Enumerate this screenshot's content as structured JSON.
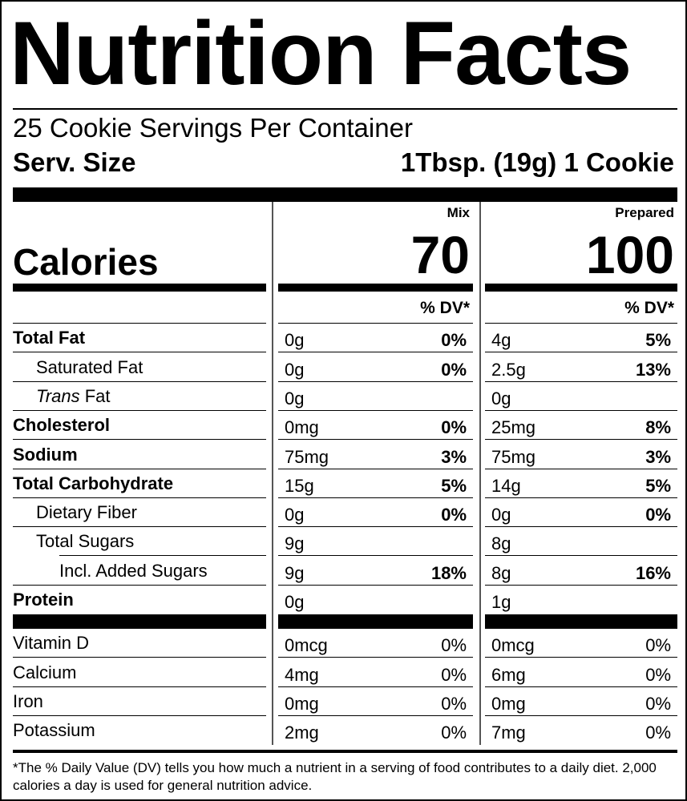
{
  "header": {
    "title": "Nutrition Facts",
    "servings": "25 Cookie Servings Per Container",
    "serving_size_label": "Serv. Size",
    "serving_size": "1Tbsp. (19g) 1 Cookie"
  },
  "calories": {
    "label": "Calories",
    "columns": [
      {
        "heading": "Mix",
        "value": "70",
        "dv_heading": "% DV*"
      },
      {
        "heading": "Prepared",
        "value": "100",
        "dv_heading": "% DV*"
      }
    ]
  },
  "nutrients": [
    {
      "name": "Total Fat",
      "bold": true,
      "indent": 0,
      "mix": {
        "amount": "0g",
        "dv": "0%"
      },
      "prepared": {
        "amount": "4g",
        "dv": "5%"
      }
    },
    {
      "name": "Saturated Fat",
      "bold": false,
      "indent": 1,
      "mix": {
        "amount": "0g",
        "dv": "0%"
      },
      "prepared": {
        "amount": "2.5g",
        "dv": "13%"
      }
    },
    {
      "italic_prefix": "Trans",
      "name": "Fat",
      "bold": false,
      "indent": 1,
      "mix": {
        "amount": "0g"
      },
      "prepared": {
        "amount": "0g"
      }
    },
    {
      "name": "Cholesterol",
      "bold": true,
      "indent": 0,
      "mix": {
        "amount": "0mg",
        "dv": "0%"
      },
      "prepared": {
        "amount": "25mg",
        "dv": "8%"
      }
    },
    {
      "name": "Sodium",
      "bold": true,
      "indent": 0,
      "mix": {
        "amount": "75mg",
        "dv": "3%"
      },
      "prepared": {
        "amount": "75mg",
        "dv": "3%"
      }
    },
    {
      "name": "Total Carbohydrate",
      "bold": true,
      "indent": 0,
      "mix": {
        "amount": "15g",
        "dv": "5%"
      },
      "prepared": {
        "amount": "14g",
        "dv": "5%"
      }
    },
    {
      "name": "Dietary Fiber",
      "bold": false,
      "indent": 1,
      "mix": {
        "amount": "0g",
        "dv": "0%"
      },
      "prepared": {
        "amount": "0g",
        "dv": "0%"
      }
    },
    {
      "name": "Total Sugars",
      "bold": false,
      "indent": 1,
      "mix": {
        "amount": "9g"
      },
      "prepared": {
        "amount": "8g"
      }
    },
    {
      "name": "Incl. Added Sugars",
      "bold": false,
      "indent": 2,
      "mix": {
        "amount": "9g",
        "dv": "18%"
      },
      "prepared": {
        "amount": "8g",
        "dv": "16%"
      }
    },
    {
      "name": "Protein",
      "bold": true,
      "indent": 0,
      "mix": {
        "amount": "0g"
      },
      "prepared": {
        "amount": "1g"
      }
    }
  ],
  "vitamins": [
    {
      "name": "Vitamin D",
      "mix": {
        "amount": "0mcg",
        "dv": "0%"
      },
      "prepared": {
        "amount": "0mcg",
        "dv": "0%"
      }
    },
    {
      "name": "Calcium",
      "mix": {
        "amount": "4mg",
        "dv": "0%"
      },
      "prepared": {
        "amount": "6mg",
        "dv": "0%"
      }
    },
    {
      "name": "Iron",
      "mix": {
        "amount": "0mg",
        "dv": "0%"
      },
      "prepared": {
        "amount": "0mg",
        "dv": "0%"
      }
    },
    {
      "name": "Potassium",
      "mix": {
        "amount": "2mg",
        "dv": "0%"
      },
      "prepared": {
        "amount": "7mg",
        "dv": "0%"
      }
    }
  ],
  "footnote": "*The % Daily Value (DV) tells you how much a nutrient in a serving of food contributes to a daily diet. 2,000 calories a day is used for general nutrition advice."
}
